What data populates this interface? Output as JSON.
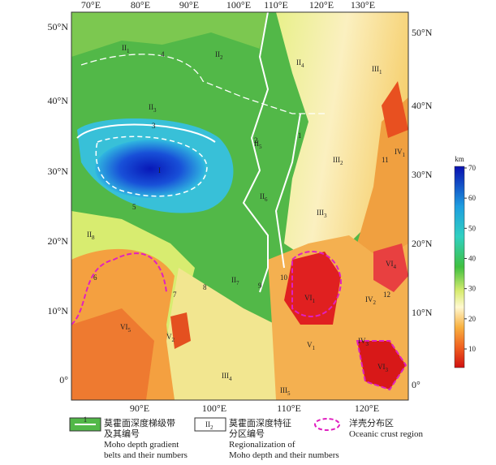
{
  "map": {
    "top_lon_labels": [
      "70°E",
      "80°E",
      "90°E",
      "100°E",
      "110°E",
      "120°E",
      "130°E"
    ],
    "bottom_lon_labels": [
      "90°E",
      "100°E",
      "110°E",
      "120°E"
    ],
    "left_lat_labels": [
      "50°N",
      "40°N",
      "30°N",
      "20°N",
      "10°N",
      "0°"
    ],
    "right_lat_labels": [
      "50°N",
      "40°N",
      "30°N",
      "20°N",
      "10°N",
      "0°"
    ],
    "colorbar": {
      "unit": "km",
      "ticks": [
        70,
        60,
        50,
        40,
        30,
        20,
        10
      ]
    },
    "regions": [
      {
        "label": "II",
        "sub": "1"
      },
      {
        "label": "II",
        "sub": "2"
      },
      {
        "label": "II",
        "sub": "4"
      },
      {
        "label": "III",
        "sub": "1"
      },
      {
        "label": "II",
        "sub": "3"
      },
      {
        "label": "II",
        "sub": "5"
      },
      {
        "label": "III",
        "sub": "2"
      },
      {
        "label": "IV",
        "sub": "1"
      },
      {
        "label": "I",
        "sub": ""
      },
      {
        "label": "II",
        "sub": "6"
      },
      {
        "label": "III",
        "sub": "3"
      },
      {
        "label": "II",
        "sub": "8"
      },
      {
        "label": "VI",
        "sub": "4"
      },
      {
        "label": "VI",
        "sub": "1"
      },
      {
        "label": "IV",
        "sub": "2"
      },
      {
        "label": "II",
        "sub": "7"
      },
      {
        "label": "VI",
        "sub": "5"
      },
      {
        "label": "V",
        "sub": "2"
      },
      {
        "label": "V",
        "sub": "1"
      },
      {
        "label": "IV",
        "sub": "3"
      },
      {
        "label": "VI",
        "sub": "3"
      },
      {
        "label": "III",
        "sub": "4"
      },
      {
        "label": "III",
        "sub": "5"
      }
    ],
    "belts": [
      "1",
      "2",
      "3",
      "4",
      "5",
      "6",
      "7",
      "8",
      "9",
      "10",
      "11",
      "12"
    ],
    "legend": [
      {
        "symbol": "1",
        "lines": [
          "莫霍面深度梯级带",
          "及其编号",
          "Moho depth gradient",
          "belts and their numbers"
        ]
      },
      {
        "symbol": "II",
        "symbol_sub": "2",
        "lines": [
          "莫霍面深度特征",
          "分区编号",
          "Regionalization of",
          "Moho depth and their numbers"
        ]
      },
      {
        "lines": [
          "洋壳分布区",
          "Oceanic crust region"
        ]
      }
    ]
  }
}
